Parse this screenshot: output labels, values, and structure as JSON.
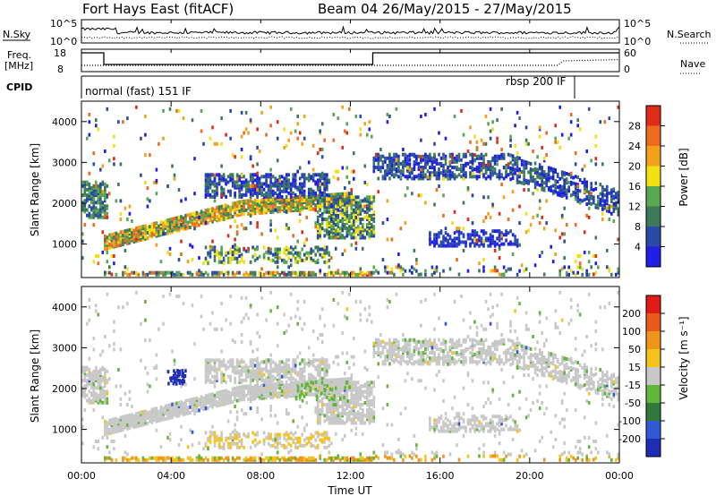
{
  "header": {
    "station": "Fort Hays East (fitACF)",
    "beam_date": "Beam 04 26/May/2015 - 27/May/2015"
  },
  "summary": {
    "nsky_label": "N.Sky",
    "nsearch_label": "N.Search",
    "nsky_ticks": [
      "10^5",
      "10^0"
    ],
    "nsearch_ticks": [
      "10^5",
      "10^0"
    ],
    "freq_label_1": "Freq.",
    "freq_label_2": "[MHz]",
    "freq_ticks": [
      "18",
      "8"
    ],
    "nave_label": "Nave",
    "nave_ticks": [
      "60",
      "0"
    ],
    "cpid_label": "CPID",
    "cpid_segments": [
      {
        "label": "normal (fast) 151 IF",
        "start_h": 0,
        "end_h": 22
      },
      {
        "label": "rbsp 200 IF",
        "start_h": 22,
        "end_h": 24
      }
    ]
  },
  "chart_data": [
    {
      "type": "heatmap",
      "name": "power",
      "ylabel": "Slant Range [km]",
      "xlabel": "Time UT",
      "ylim": [
        180,
        4500
      ],
      "yticks": [
        1000,
        2000,
        3000,
        4000
      ],
      "xlim": [
        0,
        24
      ],
      "xtick_labels": [
        "00:00",
        "04:00",
        "08:00",
        "12:00",
        "16:00",
        "20:00",
        "00:00"
      ],
      "xticks_h": [
        0,
        4,
        8,
        12,
        16,
        20,
        24
      ],
      "colorbar": {
        "label": "Power [dB]",
        "tick_labels": [
          "4",
          "8",
          "12",
          "16",
          "20",
          "24",
          "28"
        ],
        "colors": [
          "#1f1fe6",
          "#2a4aa8",
          "#3d7a5a",
          "#57a84e",
          "#f2e011",
          "#f3a11b",
          "#ee6a1f",
          "#e02a1a"
        ]
      }
    },
    {
      "type": "heatmap",
      "name": "velocity",
      "ylabel": "Slant Range [km]",
      "xlabel": "Time UT",
      "ylim": [
        180,
        4500
      ],
      "yticks": [
        1000,
        2000,
        3000,
        4000
      ],
      "xlim": [
        0,
        24
      ],
      "xtick_labels": [
        "00:00",
        "04:00",
        "08:00",
        "12:00",
        "16:00",
        "20:00",
        "00:00"
      ],
      "xticks_h": [
        0,
        4,
        8,
        12,
        16,
        20,
        24
      ],
      "colorbar": {
        "label": "Velocity [m s⁻¹]",
        "tick_labels": [
          "200",
          "100",
          "50",
          "15",
          "-15",
          "-50",
          "-100",
          "-200"
        ],
        "colors": [
          "#1d2db6",
          "#2f5ad6",
          "#2f7a3a",
          "#5fb63a",
          "#c8c8c8",
          "#f6c21c",
          "#f0941c",
          "#e85a18",
          "#e01a14"
        ]
      }
    }
  ],
  "x_axis_title": "Time UT"
}
